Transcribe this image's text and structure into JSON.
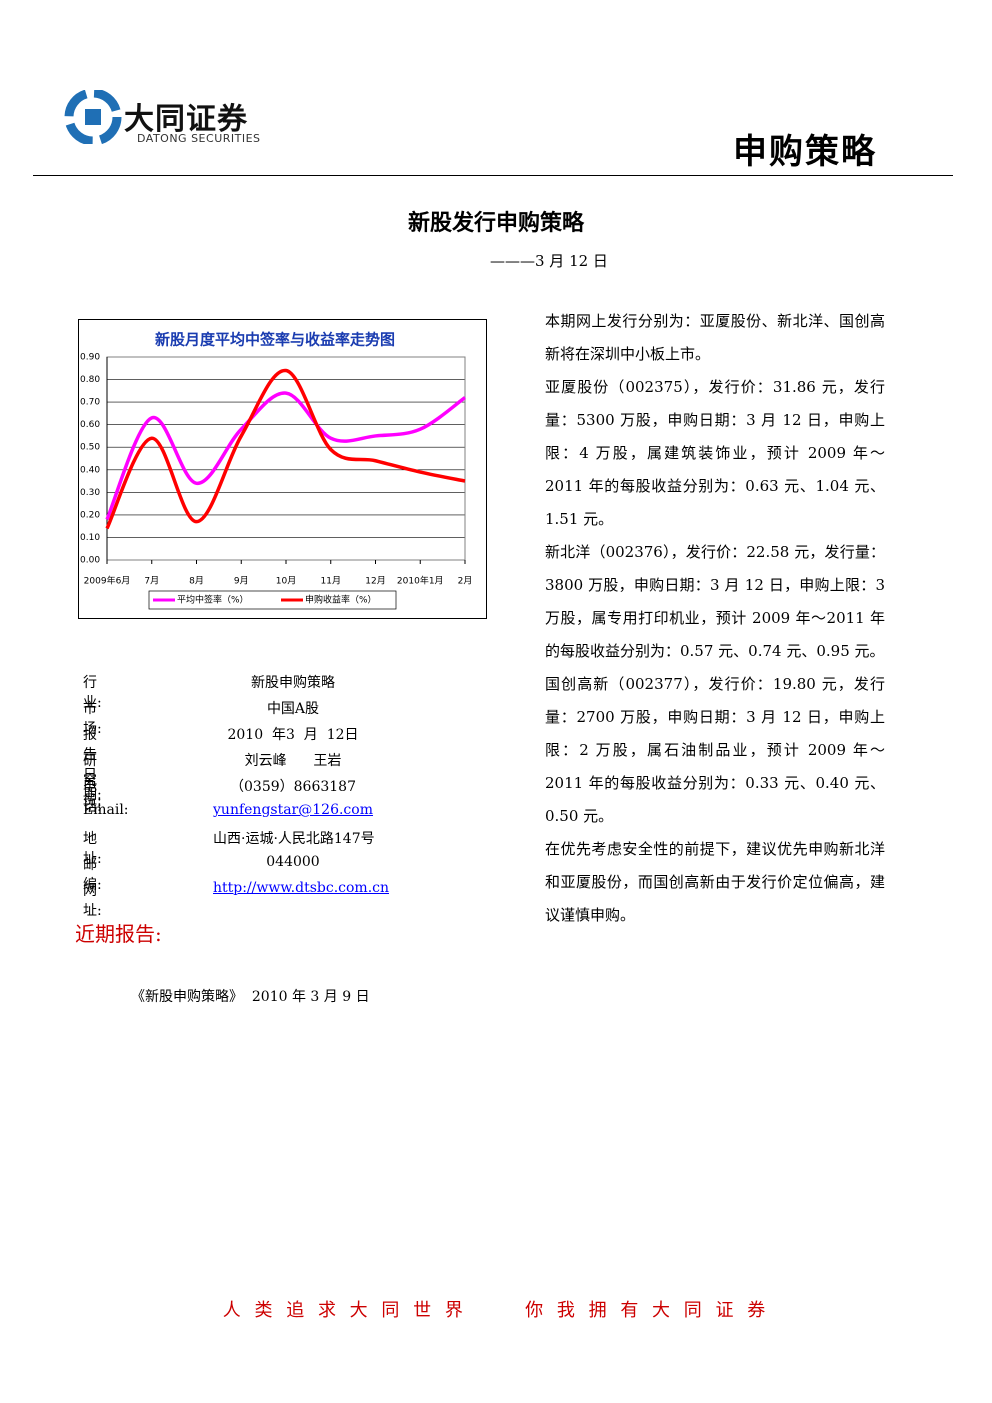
{
  "header": {
    "logo_name": "大同证券",
    "logo_sub": "DATONG SECURITIES",
    "category": "申购策略"
  },
  "title": "新股发行申购策略",
  "date": "———3 月 12 日",
  "chart_data": {
    "type": "line",
    "title": "新股月度平均中签率与收益率走势图",
    "categories": [
      "2009年6月",
      "7月",
      "8月",
      "9月",
      "10月",
      "11月",
      "12月",
      "2010年1月",
      "2月"
    ],
    "series": [
      {
        "name": "平均中签率（%）",
        "color": "#ff00ff",
        "values": [
          0.18,
          0.63,
          0.34,
          0.58,
          0.74,
          0.54,
          0.55,
          0.58,
          0.72
        ]
      },
      {
        "name": "申购收益率（%）",
        "color": "#ff0000",
        "values": [
          0.14,
          0.54,
          0.17,
          0.55,
          0.84,
          0.49,
          0.44,
          0.39,
          0.35
        ]
      }
    ],
    "ylim": [
      0,
      0.9
    ],
    "yticks": [
      {
        "value": 0,
        "label": "0.00"
      },
      {
        "value": 0.1,
        "label": "0.10"
      },
      {
        "value": 0.2,
        "label": "0.20"
      },
      {
        "value": 0.3,
        "label": "0.30"
      },
      {
        "value": 0.4,
        "label": "0.40"
      },
      {
        "value": 0.5,
        "label": "0.50"
      },
      {
        "value": 0.6,
        "label": "0.60"
      },
      {
        "value": 0.7,
        "label": "0.70"
      },
      {
        "value": 0.8,
        "label": "0.80"
      },
      {
        "value": 0.9,
        "label": "0.90"
      }
    ],
    "grid": true,
    "legend": "bottom"
  },
  "info": {
    "rows": [
      [
        "行业:",
        "新股申购策略"
      ],
      [
        "市场:",
        "中国A股"
      ],
      [
        "报告日期:",
        "2010  年3  月  12日"
      ],
      [
        "研究员:",
        "刘云峰      王岩"
      ],
      [
        "电话:",
        "（0359）8663187"
      ],
      [
        "Email:",
        "yunfengstar@126.com"
      ],
      [
        "地  址:",
        "山西·运城·人民北路147号"
      ],
      [
        "邮编:",
        "044000"
      ],
      [
        "网址:",
        "http://www.dtsbc.com.cn"
      ]
    ]
  },
  "recent": {
    "heading": "近期报告:",
    "items": [
      "《新股申购策略》  2010 年 3 月 9 日"
    ]
  },
  "body": [
    "本期网上发行分别为：亚厦股份、新北洋、国创高新将在深圳中小板上市。",
    "亚厦股份（002375），发行价：31.86 元，发行量：5300 万股，申购日期：3 月 12 日，申购上限：4 万股，属建筑装饰业，预计 2009 年～2011 年的每股收益分别为：0.63 元、1.04 元、1.51 元。",
    "新北洋（002376），发行价：22.58 元，发行量：3800 万股，申购日期：3 月 12 日，申购上限：3 万股，属专用打印机业，预计 2009 年～2011 年的每股收益分别为：0.57 元、0.74 元、0.95 元。",
    "国创高新（002377），发行价：19.80 元，发行量：2700 万股，申购日期：3 月 12 日，申购上限：2 万股，属石油制品业，预计 2009 年～2011 年的每股收益分别为：0.33 元、0.40 元、0.50 元。",
    "在优先考虑安全性的前提下，建议优先申购新北洋和亚厦股份，而国创高新由于发行价定位偏高，建议谨慎申购。"
  ],
  "footer": "人 类 追 求 大 同 世 界      你 我 拥 有 大 同 证 券"
}
